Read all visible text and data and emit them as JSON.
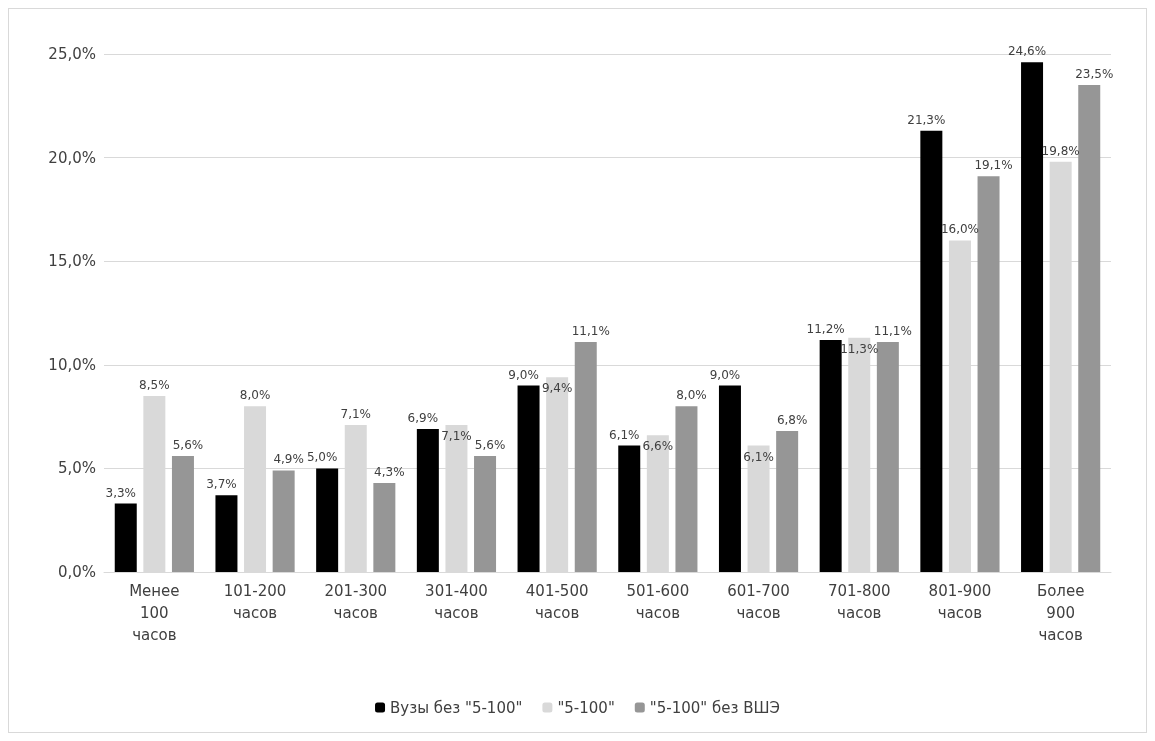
{
  "chart_data": {
    "type": "bar",
    "categories": [
      "Менее 100 часов",
      "101-200 часов",
      "201-300 часов",
      "301-400 часов",
      "401-500 часов",
      "501-600 часов",
      "601-700 часов",
      "701-800 часов",
      "801-900 часов",
      "Более 900 часов"
    ],
    "series": [
      {
        "name": "Вузы без \"5-100\"",
        "color": "#000000",
        "values": [
          3.3,
          3.7,
          5.0,
          6.9,
          9.0,
          6.1,
          9.0,
          11.2,
          21.3,
          24.6
        ],
        "value_labels": [
          "3,3%",
          "3,7%",
          "5,0%",
          "6,9%",
          "9,0%",
          "6,1%",
          "9,0%",
          "11,2%",
          "21,3%",
          "24,6%"
        ]
      },
      {
        "name": "\"5-100\"",
        "color": "#d9d9d9",
        "values": [
          8.5,
          8.0,
          7.1,
          7.1,
          9.4,
          6.6,
          6.1,
          11.3,
          16.0,
          19.8
        ],
        "value_labels": [
          "8,5%",
          "8,0%",
          "7,1%",
          "7,1%",
          "9,4%",
          "6,6%",
          "6,1%",
          "11,3%",
          "16,0%",
          "19,8%"
        ]
      },
      {
        "name": "\"5-100\" без ВШЭ",
        "color": "#969696",
        "values": [
          5.6,
          4.9,
          4.3,
          5.6,
          11.1,
          8.0,
          6.8,
          11.1,
          19.1,
          23.5
        ],
        "value_labels": [
          "5,6%",
          "4,9%",
          "4,3%",
          "5,6%",
          "11,1%",
          "8,0%",
          "6,8%",
          "11,1%",
          "19,1%",
          "23,5%"
        ]
      }
    ],
    "ylim": [
      0,
      25
    ],
    "yticks": [
      {
        "value": 0,
        "label": "0,0%"
      },
      {
        "value": 5,
        "label": "5,0%"
      },
      {
        "value": 10,
        "label": "10,0%"
      },
      {
        "value": 15,
        "label": "15,0%"
      },
      {
        "value": 20,
        "label": "20,0%"
      },
      {
        "value": 25,
        "label": "25,0%"
      }
    ],
    "grid": "y",
    "legend": "bottom"
  }
}
